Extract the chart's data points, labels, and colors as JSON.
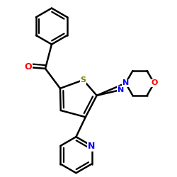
{
  "bg_color": "#ffffff",
  "atom_colors": {
    "O_ketone": "#ff0000",
    "S": "#808000",
    "N": "#0000ff",
    "O_morpholine": "#ff0000",
    "C": "#000000"
  },
  "bond_color": "#000000",
  "bond_width": 1.8,
  "figsize": [
    2.5,
    2.5
  ],
  "dpi": 100
}
